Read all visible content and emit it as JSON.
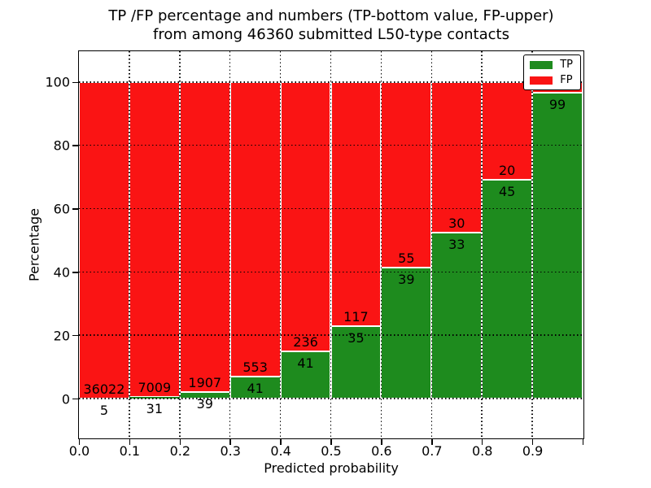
{
  "title": {
    "line1": "TP /FP percentage and numbers (TP-bottom value, FP-upper)",
    "line2": "from among 46360 submitted L50-type contacts"
  },
  "axes": {
    "x_label": "Predicted probability",
    "y_label": "Percentage",
    "x_tick_labels": [
      "0.0",
      "0.1",
      "0.2",
      "0.3",
      "0.4",
      "0.5",
      "0.6",
      "0.7",
      "0.8",
      "0.9"
    ],
    "x_tick_values": [
      0,
      0.1,
      0.2,
      0.3,
      0.4,
      0.5,
      0.6,
      0.7,
      0.8,
      0.9,
      1.0
    ],
    "y_tick_labels": [
      "0",
      "20",
      "40",
      "60",
      "80",
      "100"
    ],
    "y_tick_values": [
      0,
      20,
      40,
      60,
      80,
      100
    ]
  },
  "legend": {
    "items": [
      {
        "label": "TP",
        "color": "#1e8b1e"
      },
      {
        "label": "FP",
        "color": "#fa1414"
      }
    ],
    "position": "upper right"
  },
  "colors": {
    "tp": "#1e8b1e",
    "fp": "#fa1414",
    "bar_edge": "#ffffff",
    "grid": "#000000",
    "text": "#000000",
    "background": "#ffffff"
  },
  "chart_data": {
    "type": "bar",
    "stacked": true,
    "normalized_to_percent": true,
    "title": "TP /FP percentage and numbers (TP-bottom value, FP-upper) from among 46360 submitted L50-type contacts",
    "xlabel": "Predicted probability",
    "ylabel": "Percentage",
    "total_contacts": 46360,
    "bins": [
      "0.0-0.1",
      "0.1-0.2",
      "0.2-0.3",
      "0.3-0.4",
      "0.4-0.5",
      "0.5-0.6",
      "0.6-0.7",
      "0.7-0.8",
      "0.8-0.9",
      "0.9-1.0"
    ],
    "bin_left_edges": [
      0.0,
      0.1,
      0.2,
      0.3,
      0.4,
      0.5,
      0.6,
      0.7,
      0.8,
      0.9
    ],
    "bin_width": 0.1,
    "series": [
      {
        "name": "TP",
        "counts": [
          5,
          31,
          39,
          41,
          41,
          35,
          39,
          33,
          45,
          99
        ],
        "percent": [
          0.014,
          0.44,
          2.0,
          6.9,
          14.8,
          23.0,
          41.5,
          52.4,
          69.2,
          96.5
        ]
      },
      {
        "name": "FP",
        "counts": [
          36022,
          7009,
          1907,
          553,
          236,
          117,
          55,
          30,
          20,
          null
        ],
        "percent": [
          99.986,
          99.56,
          98.0,
          93.1,
          85.2,
          77.0,
          58.5,
          47.6,
          30.8,
          3.5
        ]
      }
    ],
    "xlim": [
      0.0,
      1.0
    ],
    "ylim": [
      -12.3,
      109.7
    ],
    "grid": true,
    "grid_style": "dotted",
    "legend_position": "upper right"
  }
}
